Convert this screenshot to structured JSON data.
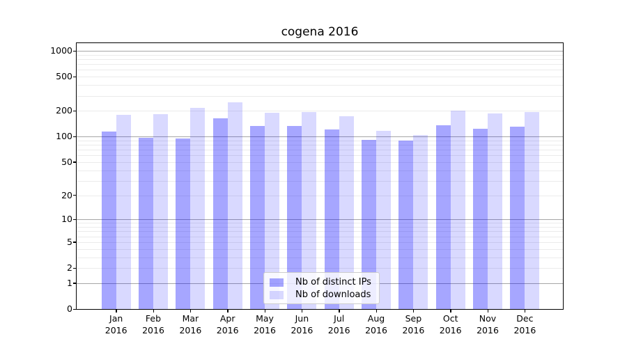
{
  "title": "cogena 2016",
  "chart_data": {
    "type": "bar",
    "title": "cogena 2016",
    "scale": "log10(1+y)",
    "categories": [
      "Jan",
      "Feb",
      "Mar",
      "Apr",
      "May",
      "Jun",
      "Jul",
      "Aug",
      "Sep",
      "Oct",
      "Nov",
      "Dec"
    ],
    "year": "2016",
    "series": [
      {
        "name": "Nb of distinct IPs",
        "color": "rgba(0,0,255,0.35)",
        "values": [
          115,
          97,
          95,
          165,
          133,
          133,
          122,
          91,
          90,
          136,
          124,
          130
        ]
      },
      {
        "name": "Nb of downloads",
        "color": "rgba(0,0,255,0.15)",
        "values": [
          181,
          184,
          216,
          252,
          190,
          192,
          172,
          117,
          104,
          200,
          188,
          194
        ]
      }
    ],
    "y_ticks": [
      0,
      1,
      2,
      5,
      10,
      20,
      50,
      100,
      200,
      500,
      1000
    ],
    "ylim": [
      0,
      1228
    ],
    "xlabel": "",
    "ylabel": "",
    "grid": {
      "orientation": "horizontal",
      "major_lines": [
        1,
        10,
        100,
        1000
      ],
      "minor_multiples": [
        2,
        3,
        4,
        5,
        6,
        7,
        8,
        9
      ]
    },
    "legend": {
      "position": "lower center",
      "items": [
        "Nb of distinct IPs",
        "Nb of downloads"
      ]
    }
  },
  "colors": {
    "bar_distinct_ips": "rgba(0,0,255,0.35)",
    "bar_downloads": "rgba(0,0,255,0.15)",
    "grid_major": "#a6a6a6",
    "grid_minor": "#ebebeb",
    "spine": "#000000",
    "background": "#ffffff"
  }
}
